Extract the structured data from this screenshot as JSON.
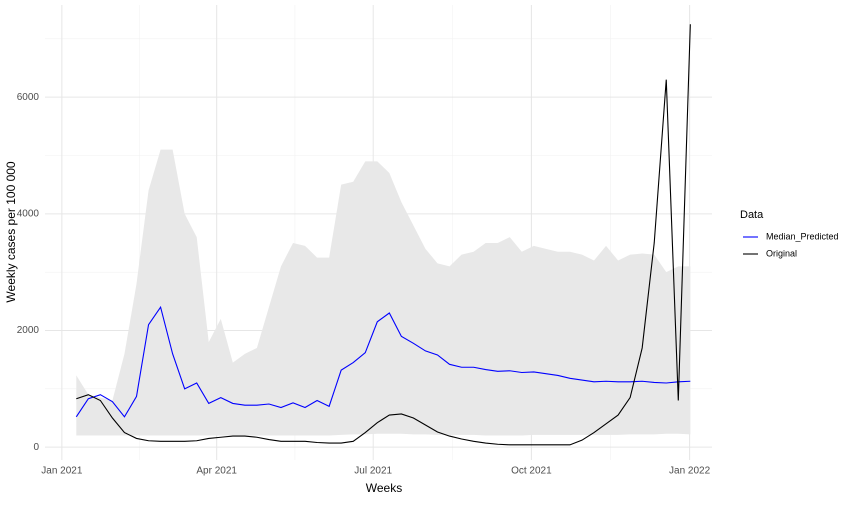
{
  "chart_data": {
    "type": "line",
    "xlabel": "Weeks",
    "ylabel": "Weekly cases per 100 000",
    "x": [
      1.2,
      2.2,
      3.2,
      4.2,
      5.2,
      6.2,
      7.2,
      8.2,
      9.2,
      10.2,
      11.2,
      12.2,
      13.2,
      14.2,
      15.2,
      16.2,
      17.2,
      18.2,
      19.2,
      20.2,
      21.2,
      22.2,
      23.2,
      24.2,
      25.2,
      26.2,
      27.2,
      28.2,
      29.2,
      30.2,
      31.2,
      32.2,
      33.2,
      34.2,
      35.2,
      36.2,
      37.2,
      38.2,
      39.2,
      40.2,
      41.2,
      42.2,
      43.2,
      44.2,
      45.2,
      46.2,
      47.2,
      48.2,
      49.2,
      50.2,
      51.2,
      52.2,
      53.2
    ],
    "series": [
      {
        "name": "Median_Predicted",
        "color": "#0000ff",
        "values": [
          520,
          830,
          900,
          780,
          520,
          870,
          2100,
          2400,
          1600,
          1000,
          1100,
          750,
          850,
          750,
          720,
          720,
          740,
          680,
          760,
          680,
          800,
          700,
          1320,
          1450,
          1620,
          2150,
          2300,
          1900,
          1780,
          1650,
          1580,
          1420,
          1370,
          1370,
          1330,
          1300,
          1310,
          1280,
          1290,
          1260,
          1230,
          1180,
          1150,
          1120,
          1130,
          1120,
          1120,
          1130,
          1110,
          1100,
          1120,
          1130,
          null
        ]
      },
      {
        "name": "Original",
        "color": "#000000",
        "values": [
          830,
          900,
          800,
          500,
          250,
          150,
          110,
          100,
          100,
          100,
          110,
          150,
          170,
          190,
          190,
          170,
          130,
          100,
          100,
          100,
          80,
          70,
          70,
          100,
          250,
          420,
          550,
          570,
          500,
          380,
          260,
          190,
          140,
          100,
          70,
          50,
          40,
          40,
          40,
          40,
          40,
          40,
          120,
          250,
          400,
          550,
          850,
          1700,
          3500,
          6300,
          800,
          7250,
          null
        ]
      }
    ],
    "band": {
      "color": "#e8e8e8",
      "upper": [
        1230,
        900,
        850,
        800,
        1600,
        2800,
        4400,
        5100,
        5100,
        4000,
        3600,
        1800,
        2200,
        1450,
        1600,
        1700,
        2400,
        3100,
        3500,
        3450,
        3250,
        3250,
        4500,
        4550,
        4900,
        4900,
        4700,
        4200,
        3800,
        3400,
        3150,
        3100,
        3300,
        3350,
        3500,
        3500,
        3600,
        3350,
        3450,
        3400,
        3350,
        3350,
        3300,
        3200,
        3450,
        3200,
        3300,
        3320,
        3300,
        3000,
        3100,
        3100,
        null
      ],
      "lower": [
        200,
        200,
        200,
        200,
        200,
        200,
        200,
        200,
        200,
        200,
        200,
        200,
        200,
        200,
        200,
        200,
        200,
        200,
        200,
        200,
        200,
        200,
        210,
        220,
        220,
        230,
        230,
        230,
        220,
        220,
        210,
        210,
        210,
        210,
        200,
        200,
        200,
        200,
        210,
        210,
        210,
        210,
        210,
        210,
        210,
        210,
        220,
        220,
        220,
        230,
        230,
        220,
        null
      ]
    },
    "xlim": [
      -1.4,
      54
    ],
    "ylim": [
      -220,
      7580
    ],
    "xticks": [
      {
        "value": 0,
        "label": "Jan 2021"
      },
      {
        "value": 12.86,
        "label": "Apr 2021"
      },
      {
        "value": 25.86,
        "label": "Jul 2021"
      },
      {
        "value": 39,
        "label": "Oct 2021"
      },
      {
        "value": 52.14,
        "label": "Jan 2022"
      }
    ],
    "yticks": [
      0,
      2000,
      4000,
      6000
    ],
    "grid": true,
    "legend": {
      "title": "Data",
      "position": "right"
    }
  }
}
